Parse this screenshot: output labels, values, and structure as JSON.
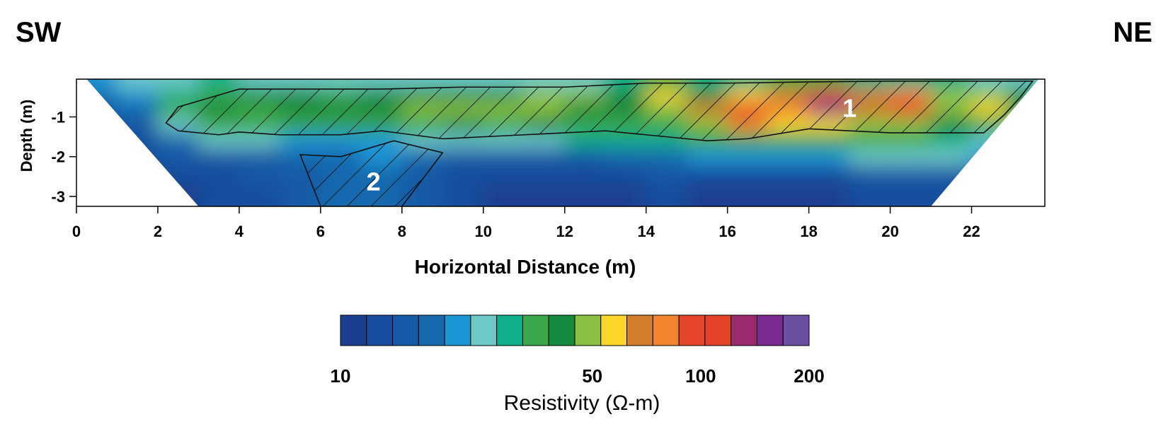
{
  "direction": {
    "left": "SW",
    "right": "NE"
  },
  "chart_data": {
    "type": "heatmap",
    "title": "",
    "xlabel": "Horizontal Distance (m)",
    "ylabel": "Depth (m)",
    "xlim": [
      0,
      23.8
    ],
    "ylim": [
      -3.25,
      -0.05
    ],
    "x_ticks": [
      0,
      2,
      4,
      6,
      8,
      10,
      12,
      14,
      16,
      18,
      20,
      22
    ],
    "x_tick_labels": [
      "0",
      "2",
      "4",
      "6",
      "8",
      "10",
      "12",
      "14",
      "16",
      "18",
      "20",
      "22"
    ],
    "y_ticks": [
      -1,
      -2,
      -3
    ],
    "y_tick_labels": [
      "-1",
      "-2",
      "-3"
    ],
    "grid": false,
    "colorscale": {
      "label": "Resistivity (Ω-m)",
      "scale": "log",
      "range": [
        10,
        200
      ],
      "tick_values": [
        10,
        50,
        100,
        200
      ],
      "tick_labels": [
        "10",
        "50",
        "100",
        "200"
      ],
      "colors": [
        "#1b3f8f",
        "#164d9c",
        "#145aa6",
        "#1769ae",
        "#1c97d6",
        "#6ec8c8",
        "#0fb08a",
        "#3aa84a",
        "#138a3e",
        "#8cc043",
        "#fbd629",
        "#d17f2c",
        "#f28430",
        "#e6462a",
        "#e34328",
        "#9b2a6e",
        "#7a2a90",
        "#6b4fa3"
      ]
    },
    "cells": [
      {
        "x": 0.5,
        "y": -0.15,
        "v": 22
      },
      {
        "x": 1.5,
        "y": -0.15,
        "v": 24
      },
      {
        "x": 2.5,
        "y": -0.15,
        "v": 26
      },
      {
        "x": 3.5,
        "y": -0.15,
        "v": 28
      },
      {
        "x": 4.5,
        "y": -0.15,
        "v": 27
      },
      {
        "x": 5.5,
        "y": -0.15,
        "v": 25
      },
      {
        "x": 6.5,
        "y": -0.15,
        "v": 24
      },
      {
        "x": 7.5,
        "y": -0.15,
        "v": 25
      },
      {
        "x": 8.5,
        "y": -0.15,
        "v": 26
      },
      {
        "x": 9.5,
        "y": -0.15,
        "v": 24
      },
      {
        "x": 10.5,
        "y": -0.15,
        "v": 25
      },
      {
        "x": 11.5,
        "y": -0.15,
        "v": 26
      },
      {
        "x": 12.5,
        "y": -0.15,
        "v": 27
      },
      {
        "x": 13.5,
        "y": -0.15,
        "v": 30
      },
      {
        "x": 14.5,
        "y": -0.15,
        "v": 34
      },
      {
        "x": 15.5,
        "y": -0.15,
        "v": 30
      },
      {
        "x": 16.5,
        "y": -0.15,
        "v": 32
      },
      {
        "x": 17.5,
        "y": -0.15,
        "v": 33
      },
      {
        "x": 18.5,
        "y": -0.15,
        "v": 35
      },
      {
        "x": 19.5,
        "y": -0.15,
        "v": 32
      },
      {
        "x": 20.5,
        "y": -0.15,
        "v": 30
      },
      {
        "x": 21.5,
        "y": -0.15,
        "v": 28
      },
      {
        "x": 22.5,
        "y": -0.15,
        "v": 27
      },
      {
        "x": 23.3,
        "y": -0.15,
        "v": 26
      },
      {
        "x": 0.5,
        "y": -0.45,
        "v": 18
      },
      {
        "x": 1.5,
        "y": -0.45,
        "v": 20
      },
      {
        "x": 2.5,
        "y": -0.45,
        "v": 30
      },
      {
        "x": 3.5,
        "y": -0.45,
        "v": 36
      },
      {
        "x": 4.5,
        "y": -0.45,
        "v": 40
      },
      {
        "x": 5.5,
        "y": -0.45,
        "v": 38
      },
      {
        "x": 6.5,
        "y": -0.45,
        "v": 36
      },
      {
        "x": 7.5,
        "y": -0.45,
        "v": 38
      },
      {
        "x": 8.5,
        "y": -0.45,
        "v": 40
      },
      {
        "x": 9.5,
        "y": -0.45,
        "v": 44
      },
      {
        "x": 10.5,
        "y": -0.45,
        "v": 42
      },
      {
        "x": 11.5,
        "y": -0.45,
        "v": 48
      },
      {
        "x": 12.5,
        "y": -0.45,
        "v": 45
      },
      {
        "x": 13.5,
        "y": -0.45,
        "v": 40
      },
      {
        "x": 14.5,
        "y": -0.45,
        "v": 58
      },
      {
        "x": 15.5,
        "y": -0.45,
        "v": 42
      },
      {
        "x": 16.5,
        "y": -0.45,
        "v": 60
      },
      {
        "x": 17.5,
        "y": -0.45,
        "v": 70
      },
      {
        "x": 18.5,
        "y": -0.45,
        "v": 95
      },
      {
        "x": 19.5,
        "y": -0.45,
        "v": 70
      },
      {
        "x": 20.5,
        "y": -0.45,
        "v": 75
      },
      {
        "x": 21.5,
        "y": -0.45,
        "v": 48
      },
      {
        "x": 22.5,
        "y": -0.45,
        "v": 52
      },
      {
        "x": 23.3,
        "y": -0.45,
        "v": 42
      },
      {
        "x": 0.5,
        "y": -0.8,
        "v": 16
      },
      {
        "x": 1.5,
        "y": -0.8,
        "v": 18
      },
      {
        "x": 2.5,
        "y": -0.8,
        "v": 36
      },
      {
        "x": 3.5,
        "y": -0.8,
        "v": 42
      },
      {
        "x": 4.5,
        "y": -0.8,
        "v": 36
      },
      {
        "x": 5.5,
        "y": -0.8,
        "v": 44
      },
      {
        "x": 6.5,
        "y": -0.8,
        "v": 38
      },
      {
        "x": 7.5,
        "y": -0.8,
        "v": 44
      },
      {
        "x": 8.5,
        "y": -0.8,
        "v": 46
      },
      {
        "x": 9.5,
        "y": -0.8,
        "v": 50
      },
      {
        "x": 10.5,
        "y": -0.8,
        "v": 46
      },
      {
        "x": 11.5,
        "y": -0.8,
        "v": 52
      },
      {
        "x": 12.5,
        "y": -0.8,
        "v": 44
      },
      {
        "x": 13.5,
        "y": -0.8,
        "v": 40
      },
      {
        "x": 14.5,
        "y": -0.8,
        "v": 48
      },
      {
        "x": 15.5,
        "y": -0.8,
        "v": 70
      },
      {
        "x": 16.5,
        "y": -0.8,
        "v": 110
      },
      {
        "x": 17.5,
        "y": -0.8,
        "v": 75
      },
      {
        "x": 18.5,
        "y": -0.8,
        "v": 150
      },
      {
        "x": 19.5,
        "y": -0.8,
        "v": 72
      },
      {
        "x": 20.5,
        "y": -0.8,
        "v": 95
      },
      {
        "x": 21.5,
        "y": -0.8,
        "v": 45
      },
      {
        "x": 22.5,
        "y": -0.8,
        "v": 62
      },
      {
        "x": 23.3,
        "y": -0.8,
        "v": 40
      },
      {
        "x": 0.5,
        "y": -1.2,
        "v": 14
      },
      {
        "x": 1.5,
        "y": -1.2,
        "v": 15
      },
      {
        "x": 2.5,
        "y": -1.2,
        "v": 26
      },
      {
        "x": 3.5,
        "y": -1.2,
        "v": 36
      },
      {
        "x": 4.5,
        "y": -1.2,
        "v": 34
      },
      {
        "x": 5.5,
        "y": -1.2,
        "v": 36
      },
      {
        "x": 6.5,
        "y": -1.2,
        "v": 35
      },
      {
        "x": 7.5,
        "y": -1.2,
        "v": 34
      },
      {
        "x": 8.5,
        "y": -1.2,
        "v": 36
      },
      {
        "x": 9.5,
        "y": -1.2,
        "v": 38
      },
      {
        "x": 10.5,
        "y": -1.2,
        "v": 36
      },
      {
        "x": 11.5,
        "y": -1.2,
        "v": 38
      },
      {
        "x": 12.5,
        "y": -1.2,
        "v": 36
      },
      {
        "x": 13.5,
        "y": -1.2,
        "v": 34
      },
      {
        "x": 14.5,
        "y": -1.2,
        "v": 36
      },
      {
        "x": 15.5,
        "y": -1.2,
        "v": 50
      },
      {
        "x": 16.5,
        "y": -1.2,
        "v": 80
      },
      {
        "x": 17.5,
        "y": -1.2,
        "v": 55
      },
      {
        "x": 18.5,
        "y": -1.2,
        "v": 60
      },
      {
        "x": 19.5,
        "y": -1.2,
        "v": 50
      },
      {
        "x": 20.5,
        "y": -1.2,
        "v": 48
      },
      {
        "x": 21.5,
        "y": -1.2,
        "v": 38
      },
      {
        "x": 22.5,
        "y": -1.2,
        "v": 36
      },
      {
        "x": 23.3,
        "y": -1.2,
        "v": 30
      },
      {
        "x": 0.5,
        "y": -1.6,
        "v": 12
      },
      {
        "x": 1.5,
        "y": -1.6,
        "v": 13
      },
      {
        "x": 2.5,
        "y": -1.6,
        "v": 18
      },
      {
        "x": 3.5,
        "y": -1.6,
        "v": 24
      },
      {
        "x": 4.5,
        "y": -1.6,
        "v": 26
      },
      {
        "x": 5.5,
        "y": -1.6,
        "v": 22
      },
      {
        "x": 6.5,
        "y": -1.6,
        "v": 20
      },
      {
        "x": 7.5,
        "y": -1.6,
        "v": 22
      },
      {
        "x": 8.5,
        "y": -1.6,
        "v": 24
      },
      {
        "x": 9.5,
        "y": -1.6,
        "v": 26
      },
      {
        "x": 10.5,
        "y": -1.6,
        "v": 27
      },
      {
        "x": 11.5,
        "y": -1.6,
        "v": 27
      },
      {
        "x": 12.5,
        "y": -1.6,
        "v": 28
      },
      {
        "x": 13.5,
        "y": -1.6,
        "v": 28
      },
      {
        "x": 14.5,
        "y": -1.6,
        "v": 30
      },
      {
        "x": 15.5,
        "y": -1.6,
        "v": 34
      },
      {
        "x": 16.5,
        "y": -1.6,
        "v": 36
      },
      {
        "x": 17.5,
        "y": -1.6,
        "v": 34
      },
      {
        "x": 18.5,
        "y": -1.6,
        "v": 36
      },
      {
        "x": 19.5,
        "y": -1.6,
        "v": 34
      },
      {
        "x": 20.5,
        "y": -1.6,
        "v": 33
      },
      {
        "x": 21.5,
        "y": -1.6,
        "v": 30
      },
      {
        "x": 22.5,
        "y": -1.6,
        "v": 27
      },
      {
        "x": 23.3,
        "y": -1.6,
        "v": 24
      },
      {
        "x": 0.5,
        "y": -2.0,
        "v": 12
      },
      {
        "x": 1.5,
        "y": -2.0,
        "v": 12
      },
      {
        "x": 2.5,
        "y": -2.0,
        "v": 14
      },
      {
        "x": 3.5,
        "y": -2.0,
        "v": 15
      },
      {
        "x": 4.5,
        "y": -2.0,
        "v": 16
      },
      {
        "x": 5.5,
        "y": -2.0,
        "v": 18
      },
      {
        "x": 6.5,
        "y": -2.0,
        "v": 19
      },
      {
        "x": 7.5,
        "y": -2.0,
        "v": 20
      },
      {
        "x": 8.5,
        "y": -2.0,
        "v": 17
      },
      {
        "x": 9.5,
        "y": -2.0,
        "v": 16
      },
      {
        "x": 10.5,
        "y": -2.0,
        "v": 15
      },
      {
        "x": 11.5,
        "y": -2.0,
        "v": 16
      },
      {
        "x": 12.5,
        "y": -2.0,
        "v": 16
      },
      {
        "x": 13.5,
        "y": -2.0,
        "v": 17
      },
      {
        "x": 14.5,
        "y": -2.0,
        "v": 18
      },
      {
        "x": 15.5,
        "y": -2.0,
        "v": 20
      },
      {
        "x": 16.5,
        "y": -2.0,
        "v": 20
      },
      {
        "x": 17.5,
        "y": -2.0,
        "v": 20
      },
      {
        "x": 18.5,
        "y": -2.0,
        "v": 22
      },
      {
        "x": 19.5,
        "y": -2.0,
        "v": 24
      },
      {
        "x": 20.5,
        "y": -2.0,
        "v": 25
      },
      {
        "x": 21.5,
        "y": -2.0,
        "v": 24
      },
      {
        "x": 22.5,
        "y": -2.0,
        "v": 20
      },
      {
        "x": 23.3,
        "y": -2.0,
        "v": 18
      },
      {
        "x": 0.5,
        "y": -2.45,
        "v": 11
      },
      {
        "x": 1.5,
        "y": -2.45,
        "v": 11
      },
      {
        "x": 2.5,
        "y": -2.45,
        "v": 12
      },
      {
        "x": 3.5,
        "y": -2.45,
        "v": 13
      },
      {
        "x": 4.5,
        "y": -2.45,
        "v": 14
      },
      {
        "x": 5.5,
        "y": -2.45,
        "v": 16
      },
      {
        "x": 6.5,
        "y": -2.45,
        "v": 18
      },
      {
        "x": 7.5,
        "y": -2.45,
        "v": 18
      },
      {
        "x": 8.5,
        "y": -2.45,
        "v": 15
      },
      {
        "x": 9.5,
        "y": -2.45,
        "v": 13
      },
      {
        "x": 10.5,
        "y": -2.45,
        "v": 12
      },
      {
        "x": 11.5,
        "y": -2.45,
        "v": 12
      },
      {
        "x": 12.5,
        "y": -2.45,
        "v": 13
      },
      {
        "x": 13.5,
        "y": -2.45,
        "v": 13
      },
      {
        "x": 14.5,
        "y": -2.45,
        "v": 14
      },
      {
        "x": 15.5,
        "y": -2.45,
        "v": 13
      },
      {
        "x": 16.5,
        "y": -2.45,
        "v": 12
      },
      {
        "x": 17.5,
        "y": -2.45,
        "v": 12
      },
      {
        "x": 18.5,
        "y": -2.45,
        "v": 13
      },
      {
        "x": 19.5,
        "y": -2.45,
        "v": 14
      },
      {
        "x": 20.5,
        "y": -2.45,
        "v": 16
      },
      {
        "x": 21.5,
        "y": -2.45,
        "v": 16
      },
      {
        "x": 22.5,
        "y": -2.45,
        "v": 15
      },
      {
        "x": 23.3,
        "y": -2.45,
        "v": 14
      },
      {
        "x": 0.5,
        "y": -2.95,
        "v": 10
      },
      {
        "x": 1.5,
        "y": -2.95,
        "v": 10
      },
      {
        "x": 2.5,
        "y": -2.95,
        "v": 11
      },
      {
        "x": 3.5,
        "y": -2.95,
        "v": 12
      },
      {
        "x": 4.5,
        "y": -2.95,
        "v": 13
      },
      {
        "x": 5.5,
        "y": -2.95,
        "v": 15
      },
      {
        "x": 6.5,
        "y": -2.95,
        "v": 17
      },
      {
        "x": 7.5,
        "y": -2.95,
        "v": 17
      },
      {
        "x": 8.5,
        "y": -2.95,
        "v": 14
      },
      {
        "x": 9.5,
        "y": -2.95,
        "v": 12
      },
      {
        "x": 10.5,
        "y": -2.95,
        "v": 11
      },
      {
        "x": 11.5,
        "y": -2.95,
        "v": 10
      },
      {
        "x": 12.5,
        "y": -2.95,
        "v": 10
      },
      {
        "x": 13.5,
        "y": -2.95,
        "v": 11
      },
      {
        "x": 14.5,
        "y": -2.95,
        "v": 12
      },
      {
        "x": 15.5,
        "y": -2.95,
        "v": 11
      },
      {
        "x": 16.5,
        "y": -2.95,
        "v": 10
      },
      {
        "x": 17.5,
        "y": -2.95,
        "v": 10
      },
      {
        "x": 18.5,
        "y": -2.95,
        "v": 11
      },
      {
        "x": 19.5,
        "y": -2.95,
        "v": 12
      },
      {
        "x": 20.5,
        "y": -2.95,
        "v": 13
      },
      {
        "x": 21.5,
        "y": -2.95,
        "v": 13
      },
      {
        "x": 22.5,
        "y": -2.95,
        "v": 12
      },
      {
        "x": 23.3,
        "y": -2.95,
        "v": 12
      }
    ],
    "coverage_boundary": [
      [
        0.25,
        -0.05
      ],
      [
        23.65,
        -0.05
      ],
      [
        21,
        -3.25
      ],
      [
        3.0,
        -3.25
      ]
    ],
    "annotations": [
      {
        "label": "1",
        "x": 19.0,
        "y": -0.75,
        "outline": [
          [
            2.2,
            -1.15
          ],
          [
            2.5,
            -0.75
          ],
          [
            3.5,
            -0.45
          ],
          [
            4.0,
            -0.3
          ],
          [
            5.5,
            -0.3
          ],
          [
            7.5,
            -0.3
          ],
          [
            9.5,
            -0.25
          ],
          [
            12.0,
            -0.25
          ],
          [
            14.0,
            -0.15
          ],
          [
            16.0,
            -0.15
          ],
          [
            18.0,
            -0.12
          ],
          [
            20.0,
            -0.1
          ],
          [
            22.0,
            -0.1
          ],
          [
            23.5,
            -0.1
          ],
          [
            23.2,
            -0.5
          ],
          [
            22.8,
            -0.95
          ],
          [
            22.3,
            -1.4
          ],
          [
            20.0,
            -1.4
          ],
          [
            18.0,
            -1.3
          ],
          [
            16.5,
            -1.55
          ],
          [
            15.5,
            -1.6
          ],
          [
            14.0,
            -1.45
          ],
          [
            13.0,
            -1.35
          ],
          [
            11.0,
            -1.45
          ],
          [
            9.0,
            -1.55
          ],
          [
            7.5,
            -1.35
          ],
          [
            6.5,
            -1.45
          ],
          [
            5.0,
            -1.45
          ],
          [
            4.0,
            -1.38
          ],
          [
            3.5,
            -1.45
          ],
          [
            2.5,
            -1.35
          ]
        ]
      },
      {
        "label": "2",
        "x": 7.3,
        "y": -2.6,
        "outline": [
          [
            5.5,
            -1.95
          ],
          [
            6.5,
            -2.0
          ],
          [
            7.8,
            -1.6
          ],
          [
            9.0,
            -1.9
          ],
          [
            8.0,
            -3.25
          ],
          [
            6.0,
            -3.25
          ]
        ]
      }
    ]
  }
}
